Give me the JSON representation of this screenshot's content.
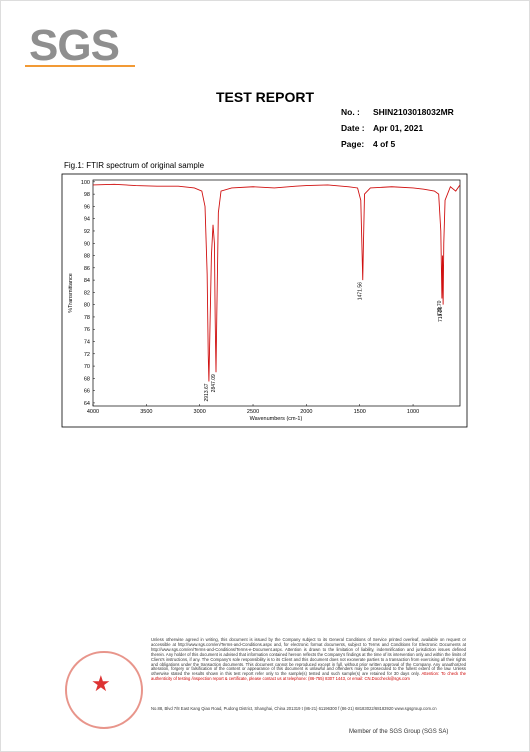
{
  "header": {
    "logo": "SGS",
    "title": "TEST REPORT",
    "no_label": "No. :",
    "no": "SHIN2103018032MR",
    "date_label": "Date :",
    "date": "Apr 01, 2021",
    "page_label": "Page:",
    "page": "4 of 5"
  },
  "chart_data": {
    "type": "line",
    "title": "Fig.1: FTIR spectrum of original sample",
    "x_label": "Wavenumbers (cm-1)",
    "y_label": "%Transmittance",
    "xlim": [
      4000,
      560
    ],
    "xticks": [
      4000,
      3500,
      3000,
      2500,
      2000,
      1500,
      1000
    ],
    "ylim": [
      63.5,
      100.3
    ],
    "yticks": [
      64,
      66,
      68,
      70,
      72,
      74,
      76,
      78,
      80,
      82,
      84,
      86,
      88,
      90,
      92,
      94,
      96,
      98,
      100
    ],
    "series": [
      {
        "color": "#d01010",
        "x": [
          4000,
          3800,
          3600,
          3400,
          3200,
          3050,
          2980,
          2950,
          2930,
          2920,
          2913.67,
          2905,
          2890,
          2875,
          2862,
          2855,
          2847.09,
          2840,
          2825,
          2800,
          2700,
          2500,
          2300,
          2100,
          2000,
          1800,
          1600,
          1520,
          1490,
          1480,
          1471.56,
          1465,
          1455,
          1400,
          1200,
          1000,
          900,
          800,
          760,
          740,
          729.7,
          724,
          718.26,
          712,
          700,
          650,
          600,
          560
        ],
        "values": [
          99.5,
          99.6,
          99.4,
          99.3,
          99.3,
          99.0,
          98.5,
          96,
          85,
          72,
          67.5,
          75,
          88,
          93,
          90,
          78,
          69,
          78,
          95,
          98.5,
          99.0,
          99.2,
          99.0,
          99.3,
          99.4,
          99.5,
          99.2,
          99.0,
          97,
          90,
          84,
          90,
          98,
          99,
          99.2,
          99,
          98.8,
          98.5,
          98,
          92,
          81,
          88,
          80,
          90,
          97,
          99.2,
          98.5,
          99.5
        ]
      }
    ],
    "annotations": [
      {
        "value": 2913.67,
        "label": "2913.67"
      },
      {
        "value": 2847.09,
        "label": "2847.09"
      },
      {
        "value": 1471.56,
        "label": "1471.56"
      },
      {
        "value": 729.7,
        "label": "729.70"
      },
      {
        "value": 718.26,
        "label": "718.26"
      }
    ]
  },
  "footer": {
    "disclaimer": "Unless otherwise agreed in writing, this document is issued by the Company subject to its General Conditions of Service printed overleaf, available on request or accessible at http://www.sgs.com/en/Terms-and-Conditions.aspx and, for electronic format documents, subject to Terms and Conditions for Electronic Documents at http://www.sgs.com/en/Terms-and-Conditions/Terms-e-Document.aspx. Attention is drawn to the limitation of liability, indemnification and jurisdiction issues defined therein. Any holder of this document is advised that information contained hereon reflects the Company's findings at the time of its intervention only and within the limits of Client's instructions, if any. The Company's sole responsibility is to its Client and this document does not exonerate parties to a transaction from exercising all their rights and obligations under the transaction documents. This document cannot be reproduced except in full, without prior written approval of the Company. Any unauthorized alteration, forgery or falsification of the content or appearance of this document is unlawful and offenders may be prosecuted to the fullest extent of the law. Unless otherwise stated the results shown in this test report refer only to the sample(s) tested and such sample(s) are retained for 30 days only.",
    "attention": "Attention: To check the authenticity of testing /inspection report & certificate, please contact us at telephone: (86-755) 8307 1443, or email: CN.Doccheck@sgs.com",
    "address": "No.88, Blvd 7/8 East Kang Qiao Road, Pudong District, Shanghai, China   201319   t (86-21) 61196300   f (86-21) 68183022/68183920   www.sgsgroup.com.cn",
    "member": "Member of the SGS Group (SGS SA)"
  }
}
